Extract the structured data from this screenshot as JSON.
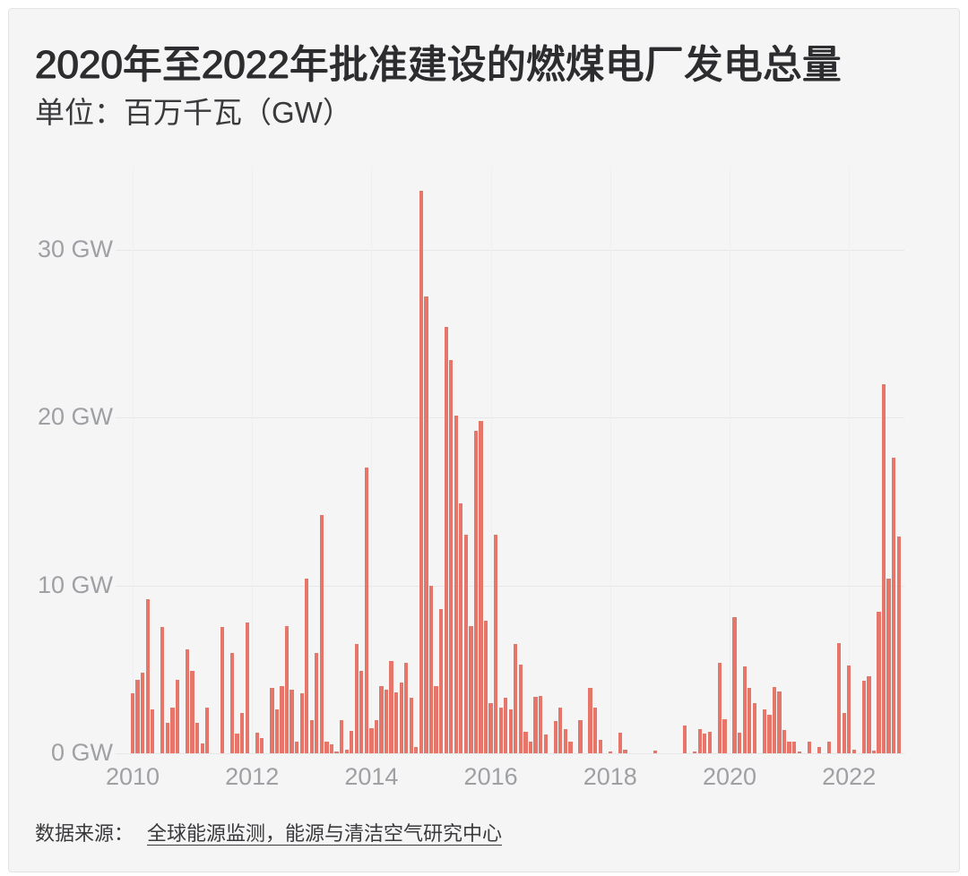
{
  "header": {
    "title": "2020年至2022年批准建设的燃煤电厂发电总量",
    "unit_label": "单位：百万千瓦（GW）"
  },
  "footer": {
    "source_label": "数据来源：",
    "source_link_text": "全球能源监测，能源与清洁空气研究中心"
  },
  "chart_data": {
    "type": "bar",
    "title": "2020年至2022年批准建设的燃煤电厂发电总量",
    "unit": "百万千瓦（GW）",
    "x_frequency": "monthly",
    "x_start": "2010-01",
    "x_end": "2022-11",
    "x_tick_labels": [
      "2010",
      "2012",
      "2014",
      "2016",
      "2018",
      "2020",
      "2022"
    ],
    "y_tick_labels": [
      "0 GW",
      "10 GW",
      "20 GW",
      "30 GW"
    ],
    "y_ticks_gw": [
      0,
      10,
      20,
      30
    ],
    "ylim": [
      0,
      35
    ],
    "bar_color": "#e6756a",
    "grid": true,
    "values": [
      3.6,
      4.4,
      4.8,
      9.2,
      2.6,
      0,
      7.5,
      1.8,
      2.7,
      4.4,
      0,
      6.2,
      4.9,
      1.8,
      0.6,
      2.7,
      0,
      0,
      7.5,
      0,
      6.0,
      1.2,
      2.4,
      7.8,
      0,
      1.25,
      0.9,
      0,
      3.9,
      2.6,
      4.0,
      7.6,
      3.8,
      0.7,
      3.6,
      10.4,
      2.0,
      6.0,
      14.2,
      0.7,
      0.55,
      0.1,
      2.0,
      0.2,
      1.35,
      6.5,
      4.9,
      17.0,
      1.5,
      2.0,
      4.0,
      3.8,
      5.5,
      3.65,
      4.2,
      5.4,
      3.3,
      0.35,
      33.5,
      27.2,
      10.0,
      4.0,
      8.6,
      25.4,
      23.4,
      20.1,
      14.9,
      13.0,
      7.6,
      19.2,
      19.8,
      7.9,
      3.0,
      13.0,
      2.7,
      3.3,
      2.6,
      6.5,
      5.3,
      1.3,
      0.7,
      3.35,
      3.4,
      1.1,
      0,
      1.9,
      2.7,
      1.45,
      0.7,
      0,
      2.0,
      0,
      3.9,
      2.7,
      0.8,
      0,
      0.12,
      0,
      1.25,
      0.2,
      0,
      0,
      0,
      0,
      0,
      0.15,
      0,
      0,
      0,
      0,
      0,
      1.65,
      0,
      0.1,
      1.45,
      1.2,
      1.3,
      0,
      5.4,
      2.05,
      0,
      8.1,
      1.25,
      5.15,
      3.9,
      3.0,
      0,
      2.6,
      2.3,
      3.95,
      3.7,
      1.4,
      0.7,
      0.7,
      0.1,
      0,
      0.7,
      0,
      0.35,
      0,
      0.7,
      0,
      6.55,
      2.4,
      5.25,
      0.2,
      0,
      4.3,
      4.6,
      0.15,
      8.45,
      22.0,
      10.4,
      17.6,
      12.9
    ]
  }
}
